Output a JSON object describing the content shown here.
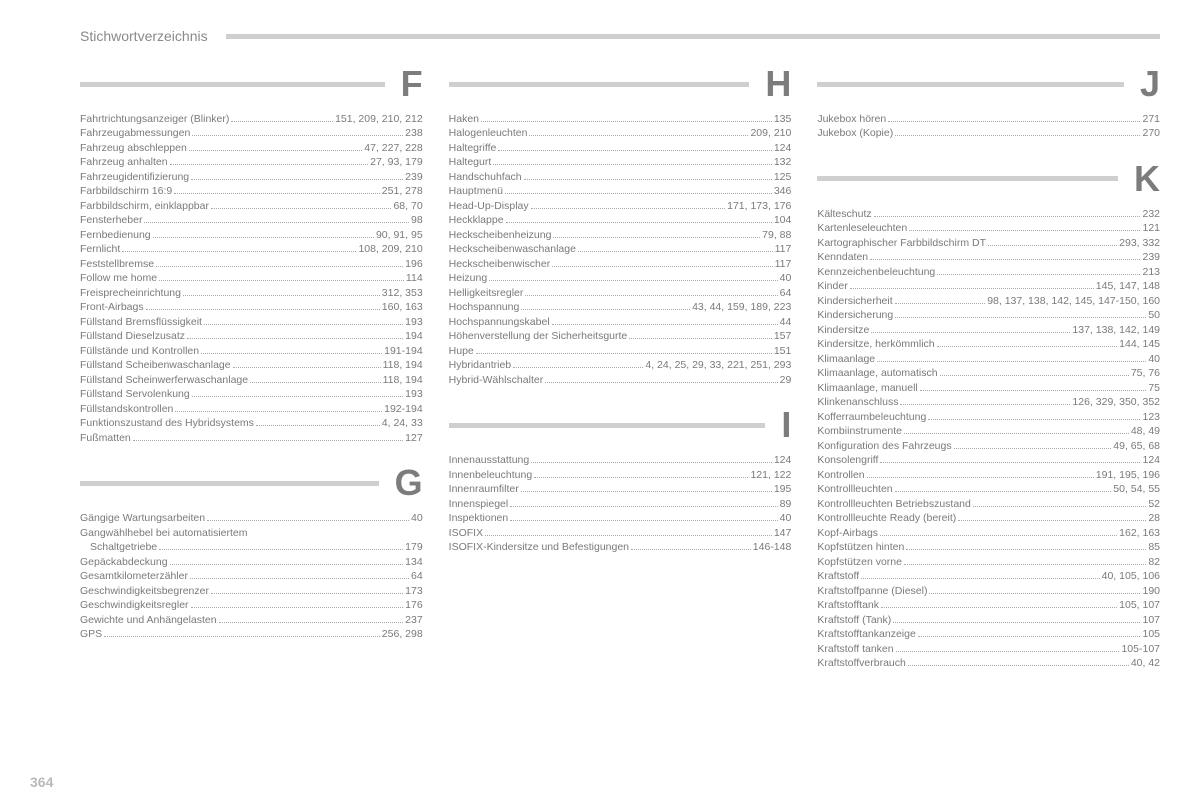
{
  "header_title": "Stichwortverzeichnis",
  "page_number": "364",
  "columns": [
    {
      "sections": [
        {
          "letter": "F",
          "entries": [
            {
              "term": "Fahrtrichtungsanzeiger (Blinker)",
              "pages": "151, 209, 210, 212"
            },
            {
              "term": "Fahrzeugabmessungen",
              "pages": "238"
            },
            {
              "term": "Fahrzeug abschleppen",
              "pages": "47, 227, 228"
            },
            {
              "term": "Fahrzeug anhalten",
              "pages": "27, 93, 179"
            },
            {
              "term": "Fahrzeugidentifizierung",
              "pages": "239"
            },
            {
              "term": "Farbbildschirm 16:9",
              "pages": "251, 278"
            },
            {
              "term": "Farbbildschirm, einklappbar",
              "pages": "68, 70"
            },
            {
              "term": "Fensterheber",
              "pages": "98"
            },
            {
              "term": "Fernbedienung",
              "pages": "90, 91, 95"
            },
            {
              "term": "Fernlicht",
              "pages": "108, 209, 210"
            },
            {
              "term": "Feststellbremse",
              "pages": "196"
            },
            {
              "term": "Follow me home",
              "pages": "114"
            },
            {
              "term": "Freisprecheinrichtung",
              "pages": "312, 353"
            },
            {
              "term": "Front-Airbags",
              "pages": "160, 163"
            },
            {
              "term": "Füllstand Bremsflüssigkeit",
              "pages": "193"
            },
            {
              "term": "Füllstand Dieselzusatz",
              "pages": "194"
            },
            {
              "term": "Füllstände und Kontrollen",
              "pages": "191-194"
            },
            {
              "term": "Füllstand Scheibenwaschanlage",
              "pages": "118, 194"
            },
            {
              "term": "Füllstand Scheinwerferwaschanlage",
              "pages": "118, 194"
            },
            {
              "term": "Füllstand Servolenkung",
              "pages": "193"
            },
            {
              "term": "Füllstandskontrollen",
              "pages": "192-194"
            },
            {
              "term": "Funktionszustand des Hybridsystems",
              "pages": "4, 24, 33"
            },
            {
              "term": "Fußmatten",
              "pages": "127"
            }
          ]
        },
        {
          "letter": "G",
          "entries": [
            {
              "term": "Gängige Wartungsarbeiten",
              "pages": "40"
            },
            {
              "term": "Gangwählhebel bei automatisiertem",
              "pages": "",
              "nodots": true
            },
            {
              "term": "Schaltgetriebe",
              "pages": "179",
              "indent": true
            },
            {
              "term": "Gepäckabdeckung",
              "pages": "134"
            },
            {
              "term": "Gesamtkilometerzähler",
              "pages": "64"
            },
            {
              "term": "Geschwindigkeitsbegrenzer",
              "pages": "173"
            },
            {
              "term": "Geschwindigkeitsregler",
              "pages": "176"
            },
            {
              "term": "Gewichte und Anhängelasten",
              "pages": "237"
            },
            {
              "term": "GPS",
              "pages": "256, 298"
            }
          ]
        }
      ]
    },
    {
      "sections": [
        {
          "letter": "H",
          "entries": [
            {
              "term": "Haken",
              "pages": "135"
            },
            {
              "term": "Halogenleuchten",
              "pages": "209, 210"
            },
            {
              "term": "Haltegriffe",
              "pages": "124"
            },
            {
              "term": "Haltegurt",
              "pages": "132"
            },
            {
              "term": "Handschuhfach",
              "pages": "125"
            },
            {
              "term": "Hauptmenü",
              "pages": "346"
            },
            {
              "term": "Head-Up-Display",
              "pages": "171, 173, 176"
            },
            {
              "term": "Heckklappe",
              "pages": "104"
            },
            {
              "term": "Heckscheibenheizung",
              "pages": "79, 88"
            },
            {
              "term": "Heckscheibenwaschanlage",
              "pages": "117"
            },
            {
              "term": "Heckscheibenwischer",
              "pages": "117"
            },
            {
              "term": "Heizung",
              "pages": "40"
            },
            {
              "term": "Helligkeitsregler",
              "pages": "64"
            },
            {
              "term": "Hochspannung",
              "pages": "43, 44, 159, 189, 223"
            },
            {
              "term": "Hochspannungskabel",
              "pages": "44"
            },
            {
              "term": "Höhenverstellung der Sicherheitsgurte",
              "pages": "157"
            },
            {
              "term": "Hupe",
              "pages": "151"
            },
            {
              "term": "Hybridantrieb",
              "pages": "4, 24, 25, 29, 33, 221, 251, 293"
            },
            {
              "term": "Hybrid-Wählschalter",
              "pages": "29"
            }
          ]
        },
        {
          "letter": "I",
          "entries": [
            {
              "term": "Innenausstattung",
              "pages": "124"
            },
            {
              "term": "Innenbeleuchtung",
              "pages": "121, 122"
            },
            {
              "term": "Innenraumfilter",
              "pages": "195"
            },
            {
              "term": "Innenspiegel",
              "pages": "89"
            },
            {
              "term": "Inspektionen",
              "pages": "40"
            },
            {
              "term": "ISOFIX",
              "pages": "147"
            },
            {
              "term": "ISOFIX-Kindersitze und Befestigungen",
              "pages": "146-148"
            }
          ]
        }
      ]
    },
    {
      "sections": [
        {
          "letter": "J",
          "entries": [
            {
              "term": "Jukebox hören",
              "pages": "271"
            },
            {
              "term": "Jukebox (Kopie)",
              "pages": "270"
            }
          ]
        },
        {
          "letter": "K",
          "entries": [
            {
              "term": "Kälteschutz",
              "pages": "232"
            },
            {
              "term": "Kartenleseleuchten",
              "pages": "121"
            },
            {
              "term": "Kartographischer Farbbildschirm DT",
              "pages": "293, 332"
            },
            {
              "term": "Kenndaten",
              "pages": "239"
            },
            {
              "term": "Kennzeichenbeleuchtung",
              "pages": "213"
            },
            {
              "term": "Kinder",
              "pages": "145, 147, 148"
            },
            {
              "term": "Kindersicherheit",
              "pages": "98, 137, 138, 142, 145, 147-150, 160"
            },
            {
              "term": "Kindersicherung",
              "pages": "50"
            },
            {
              "term": "Kindersitze",
              "pages": "137, 138, 142, 149"
            },
            {
              "term": "Kindersitze, herkömmlich",
              "pages": "144, 145"
            },
            {
              "term": "Klimaanlage",
              "pages": "40"
            },
            {
              "term": "Klimaanlage, automatisch",
              "pages": "75, 76"
            },
            {
              "term": "Klimaanlage, manuell",
              "pages": "75"
            },
            {
              "term": "Klinkenanschluss",
              "pages": "126, 329, 350, 352"
            },
            {
              "term": "Kofferraumbeleuchtung",
              "pages": "123"
            },
            {
              "term": "Kombiinstrumente",
              "pages": "48, 49"
            },
            {
              "term": "Konfiguration des Fahrzeugs",
              "pages": "49, 65, 68"
            },
            {
              "term": "Konsolengriff",
              "pages": "124"
            },
            {
              "term": "Kontrollen",
              "pages": "191, 195, 196"
            },
            {
              "term": "Kontrollleuchten",
              "pages": "50, 54, 55"
            },
            {
              "term": "Kontrollleuchten Betriebszustand",
              "pages": "52"
            },
            {
              "term": "Kontrollleuchte Ready (bereit)",
              "pages": "28"
            },
            {
              "term": "Kopf-Airbags",
              "pages": "162, 163"
            },
            {
              "term": "Kopfstützen hinten",
              "pages": "85"
            },
            {
              "term": "Kopfstützen vorne",
              "pages": "82"
            },
            {
              "term": "Kraftstoff",
              "pages": "40, 105, 106"
            },
            {
              "term": "Kraftstoffpanne (Diesel)",
              "pages": "190"
            },
            {
              "term": "Kraftstofftank",
              "pages": "105, 107"
            },
            {
              "term": "Kraftstoff (Tank)",
              "pages": "107"
            },
            {
              "term": "Kraftstofftankanzeige",
              "pages": "105"
            },
            {
              "term": "Kraftstoff tanken",
              "pages": "105-107"
            },
            {
              "term": "Kraftstoffverbrauch",
              "pages": "40, 42"
            }
          ]
        }
      ]
    }
  ]
}
